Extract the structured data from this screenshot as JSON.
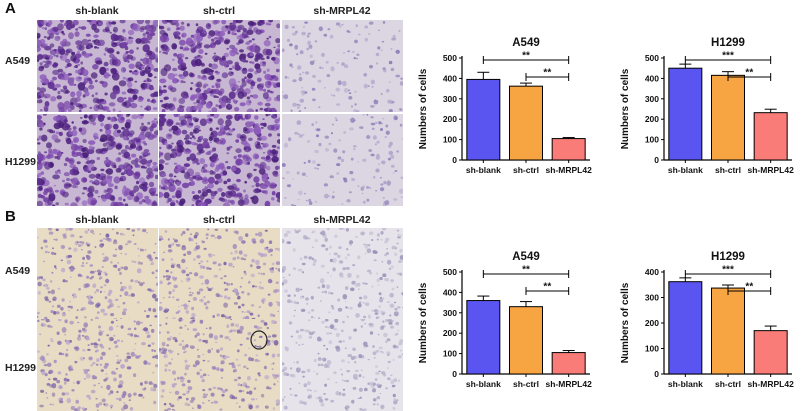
{
  "panels": [
    {
      "letter": "A",
      "columns": [
        "sh-blank",
        "sh-ctrl",
        "sh-MRPL42"
      ],
      "rows": [
        "A549",
        "H1299"
      ],
      "image_style": "dense-violet"
    },
    {
      "letter": "B",
      "columns": [
        "sh-blank",
        "sh-ctrl",
        "sh-MRPL42"
      ],
      "rows": [
        "A549",
        "H1299"
      ],
      "image_style": "sparse-beige"
    }
  ],
  "colors": {
    "sh-blank": "#5a55f0",
    "sh-ctrl": "#f7a442",
    "sh-MRPL42": "#f97c78"
  },
  "chart_data": [
    {
      "type": "bar",
      "title": "A549",
      "ylabel": "Numbers of cells",
      "categories": [
        "sh-blank",
        "sh-ctrl",
        "sh-MRPL42"
      ],
      "values": [
        395,
        362,
        105
      ],
      "errors": [
        35,
        15,
        5
      ],
      "ylim": [
        0,
        500
      ],
      "yticks": [
        0,
        100,
        200,
        300,
        400,
        500
      ],
      "significance": [
        {
          "from": 0,
          "to": 2,
          "label": "**"
        },
        {
          "from": 1,
          "to": 2,
          "label": "**"
        }
      ]
    },
    {
      "type": "bar",
      "title": "H1299",
      "ylabel": "Numbers of cells",
      "categories": [
        "sh-blank",
        "sh-ctrl",
        "sh-MRPL42"
      ],
      "values": [
        450,
        415,
        232
      ],
      "errors": [
        20,
        18,
        17
      ],
      "ylim": [
        0,
        500
      ],
      "yticks": [
        0,
        100,
        200,
        300,
        400,
        500
      ],
      "significance": [
        {
          "from": 0,
          "to": 2,
          "label": "***"
        },
        {
          "from": 1,
          "to": 2,
          "label": "**"
        }
      ]
    },
    {
      "type": "bar",
      "title": "A549",
      "ylabel": "Numbers of cells",
      "categories": [
        "sh-blank",
        "sh-ctrl",
        "sh-MRPL42"
      ],
      "values": [
        360,
        330,
        105
      ],
      "errors": [
        22,
        25,
        10
      ],
      "ylim": [
        0,
        500
      ],
      "yticks": [
        0,
        100,
        200,
        300,
        400,
        500
      ],
      "significance": [
        {
          "from": 0,
          "to": 2,
          "label": "**"
        },
        {
          "from": 1,
          "to": 2,
          "label": "**"
        }
      ]
    },
    {
      "type": "bar",
      "title": "H1299",
      "ylabel": "Numbers of cells",
      "categories": [
        "sh-blank",
        "sh-ctrl",
        "sh-MRPL42"
      ],
      "values": [
        362,
        337,
        170
      ],
      "errors": [
        15,
        12,
        18
      ],
      "ylim": [
        0,
        400
      ],
      "yticks": [
        0,
        100,
        200,
        300,
        400
      ],
      "significance": [
        {
          "from": 0,
          "to": 2,
          "label": "***"
        },
        {
          "from": 1,
          "to": 2,
          "label": "**"
        }
      ]
    }
  ]
}
